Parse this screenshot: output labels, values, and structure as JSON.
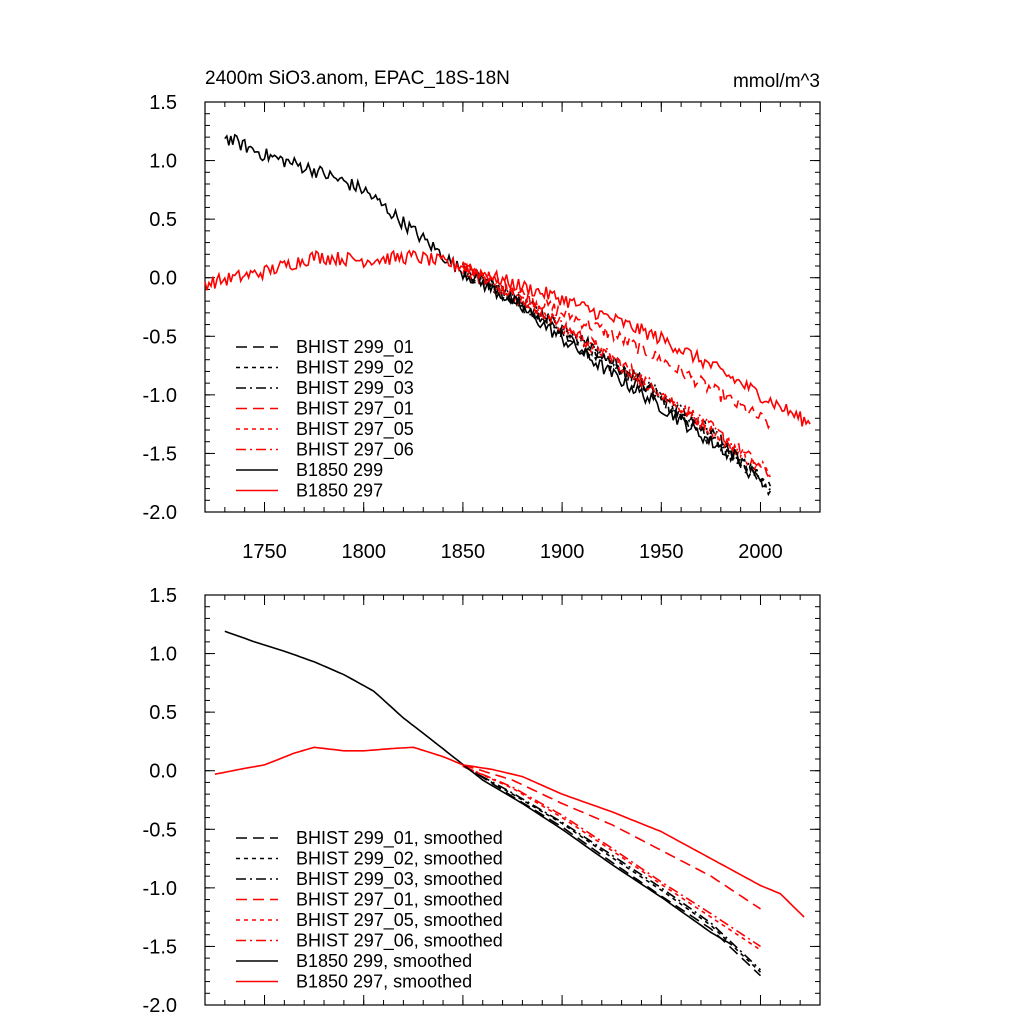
{
  "chart_data": [
    {
      "type": "line",
      "title": "2400m SiO3.anom, EPAC_18S-18N",
      "units": "mmol/m^3",
      "xlim": [
        1720,
        2030
      ],
      "ylim": [
        -2.0,
        1.5
      ],
      "xticks": [
        1750,
        1800,
        1850,
        1900,
        1950,
        2000
      ],
      "xtick_labels": [
        "1750",
        "1800",
        "1850",
        "1900",
        "1950",
        "2000"
      ],
      "yticks": [
        1.5,
        1.0,
        0.5,
        0.0,
        -0.5,
        -1.0,
        -1.5,
        -2.0
      ],
      "ytick_labels": [
        "1.5",
        "1.0",
        "0.5",
        "0.0",
        "-0.5",
        "-1.0",
        "-1.5",
        "-2.0"
      ],
      "legend_position": "bottom-left",
      "series": [
        {
          "name": "BHIST 299_01",
          "color": "#000000",
          "dash": "long-dash",
          "noisy": true,
          "x": [
            1850,
            1875,
            1900,
            1925,
            1950,
            1975,
            2005
          ],
          "y": [
            0.1,
            -0.2,
            -0.48,
            -0.75,
            -1.05,
            -1.38,
            -1.82
          ]
        },
        {
          "name": "BHIST 299_02",
          "color": "#000000",
          "dash": "short-dash",
          "noisy": true,
          "x": [
            1850,
            1875,
            1900,
            1925,
            1950,
            1975,
            2005
          ],
          "y": [
            0.08,
            -0.18,
            -0.45,
            -0.73,
            -1.02,
            -1.35,
            -1.8
          ]
        },
        {
          "name": "BHIST 299_03",
          "color": "#000000",
          "dash": "dash-dot",
          "noisy": true,
          "x": [
            1850,
            1875,
            1900,
            1925,
            1950,
            1975,
            2005
          ],
          "y": [
            0.06,
            -0.16,
            -0.42,
            -0.7,
            -1.0,
            -1.32,
            -1.78
          ]
        },
        {
          "name": "BHIST 297_01",
          "color": "#ff0000",
          "dash": "long-dash",
          "noisy": true,
          "x": [
            1850,
            1875,
            1900,
            1925,
            1950,
            1975,
            2005
          ],
          "y": [
            0.1,
            -0.1,
            -0.3,
            -0.48,
            -0.7,
            -0.95,
            -1.25
          ]
        },
        {
          "name": "BHIST 297_05",
          "color": "#ff0000",
          "dash": "short-dash",
          "noisy": true,
          "x": [
            1850,
            1875,
            1900,
            1925,
            1950,
            1975,
            2005
          ],
          "y": [
            0.08,
            -0.15,
            -0.42,
            -0.7,
            -1.0,
            -1.3,
            -1.7
          ]
        },
        {
          "name": "BHIST 297_06",
          "color": "#ff0000",
          "dash": "dash-dot",
          "noisy": true,
          "x": [
            1850,
            1875,
            1900,
            1925,
            1950,
            1975,
            2005
          ],
          "y": [
            0.09,
            -0.14,
            -0.4,
            -0.68,
            -0.98,
            -1.28,
            -1.68
          ]
        },
        {
          "name": "B1850 299",
          "color": "#000000",
          "dash": "solid",
          "noisy": true,
          "x": [
            1730,
            1750,
            1775,
            1800,
            1825,
            1850,
            1875,
            1900,
            1925,
            1950,
            1975,
            1990
          ],
          "y": [
            1.2,
            1.05,
            0.92,
            0.75,
            0.4,
            0.05,
            -0.2,
            -0.52,
            -0.82,
            -1.1,
            -1.4,
            -1.55
          ]
        },
        {
          "name": "B1850 297",
          "color": "#ff0000",
          "dash": "solid",
          "noisy": true,
          "x": [
            1720,
            1750,
            1775,
            1800,
            1825,
            1850,
            1875,
            1900,
            1925,
            1950,
            1975,
            2000,
            2025
          ],
          "y": [
            -0.05,
            0.05,
            0.18,
            0.15,
            0.18,
            0.1,
            -0.05,
            -0.18,
            -0.35,
            -0.52,
            -0.75,
            -1.0,
            -1.25
          ]
        }
      ]
    },
    {
      "type": "line",
      "title": "",
      "xlim": [
        1720,
        2030
      ],
      "ylim": [
        -2.0,
        1.5
      ],
      "xticks": [
        1750,
        1800,
        1850,
        1900,
        1950,
        2000
      ],
      "yticks": [
        1.5,
        1.0,
        0.5,
        0.0,
        -0.5,
        -1.0,
        -1.5,
        -2.0
      ],
      "ytick_labels": [
        "1.5",
        "1.0",
        "0.5",
        "0.0",
        "-0.5",
        "-1.0",
        "-1.5",
        "-2.0"
      ],
      "legend_position": "bottom-left",
      "series": [
        {
          "name": "BHIST 299_01, smoothed",
          "color": "#000000",
          "dash": "long-dash",
          "x": [
            1850,
            1875,
            1900,
            1925,
            1950,
            1975,
            2000
          ],
          "y": [
            0.05,
            -0.22,
            -0.48,
            -0.78,
            -1.07,
            -1.35,
            -1.75
          ]
        },
        {
          "name": "BHIST 299_02, smoothed",
          "color": "#000000",
          "dash": "short-dash",
          "x": [
            1850,
            1875,
            1900,
            1925,
            1950,
            1975,
            2000
          ],
          "y": [
            0.04,
            -0.2,
            -0.45,
            -0.74,
            -1.02,
            -1.32,
            -1.72
          ]
        },
        {
          "name": "BHIST 299_03, smoothed",
          "color": "#000000",
          "dash": "dash-dot",
          "x": [
            1850,
            1875,
            1900,
            1925,
            1950,
            1975,
            2000
          ],
          "y": [
            0.04,
            -0.19,
            -0.44,
            -0.72,
            -1.0,
            -1.3,
            -1.7
          ]
        },
        {
          "name": "BHIST 297_01, smoothed",
          "color": "#ff0000",
          "dash": "long-dash",
          "x": [
            1850,
            1875,
            1900,
            1925,
            1950,
            1975,
            2000
          ],
          "y": [
            0.05,
            -0.08,
            -0.28,
            -0.46,
            -0.68,
            -0.9,
            -1.18
          ]
        },
        {
          "name": "BHIST 297_05, smoothed",
          "color": "#ff0000",
          "dash": "short-dash",
          "x": [
            1850,
            1875,
            1900,
            1925,
            1950,
            1975,
            2000
          ],
          "y": [
            0.04,
            -0.15,
            -0.4,
            -0.68,
            -0.97,
            -1.25,
            -1.53
          ]
        },
        {
          "name": "BHIST 297_06, smoothed",
          "color": "#ff0000",
          "dash": "dash-dot",
          "x": [
            1850,
            1875,
            1900,
            1925,
            1950,
            1975,
            2000
          ],
          "y": [
            0.04,
            -0.14,
            -0.38,
            -0.66,
            -0.95,
            -1.22,
            -1.5
          ]
        },
        {
          "name": "B1850 299, smoothed",
          "color": "#000000",
          "dash": "solid",
          "x": [
            1730,
            1745,
            1760,
            1775,
            1790,
            1805,
            1820,
            1830,
            1845,
            1860,
            1880,
            1900,
            1925,
            1950,
            1975,
            1985
          ],
          "y": [
            1.19,
            1.1,
            1.02,
            0.93,
            0.82,
            0.68,
            0.45,
            0.32,
            0.12,
            -0.08,
            -0.28,
            -0.5,
            -0.8,
            -1.08,
            -1.38,
            -1.48
          ]
        },
        {
          "name": "B1850 297, smoothed",
          "color": "#ff0000",
          "dash": "solid",
          "x": [
            1725,
            1740,
            1750,
            1765,
            1775,
            1790,
            1800,
            1815,
            1825,
            1840,
            1850,
            1865,
            1880,
            1900,
            1925,
            1950,
            1975,
            2000,
            2010,
            2022
          ],
          "y": [
            -0.03,
            0.02,
            0.05,
            0.15,
            0.2,
            0.17,
            0.17,
            0.19,
            0.2,
            0.12,
            0.05,
            0.01,
            -0.05,
            -0.2,
            -0.35,
            -0.52,
            -0.75,
            -0.98,
            -1.05,
            -1.25
          ]
        }
      ]
    }
  ]
}
